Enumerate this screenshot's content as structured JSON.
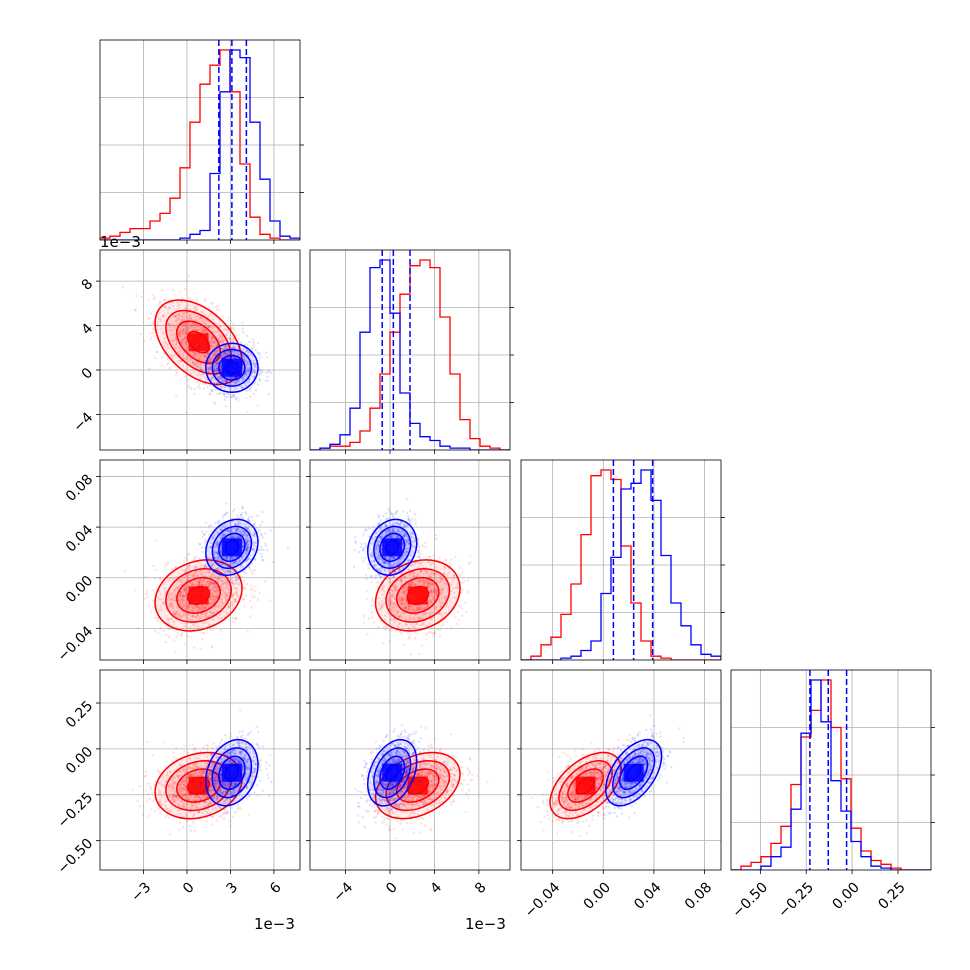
{
  "colors": {
    "series_a": "#ff0000",
    "series_b": "#0000ff",
    "grid": "#b0b0b0"
  },
  "offset_labels": {
    "col0": "1e−3",
    "col1": "1e−3",
    "row1": "1e−3"
  },
  "chart_data": {
    "type": "corner",
    "title": "",
    "grid": true,
    "parameters": [
      {
        "label": "",
        "range": [
          -0.006,
          0.0078
        ],
        "ticks": [
          -0.003,
          0,
          0.003,
          0.006
        ],
        "tick_labels": [
          "−3",
          "0",
          "3",
          "6"
        ],
        "offset": "1e−3"
      },
      {
        "label": "",
        "range": [
          -0.0072,
          0.0108
        ],
        "ticks": [
          -0.004,
          0,
          0.004,
          0.008
        ],
        "tick_labels": [
          "−4",
          "0",
          "4",
          "8"
        ],
        "offset": "1e−3"
      },
      {
        "label": "",
        "range": [
          -0.065,
          0.093
        ],
        "ticks": [
          -0.04,
          0,
          0.04,
          0.08
        ],
        "tick_labels": [
          "−0.04",
          "0.00",
          "0.04",
          "0.08"
        ],
        "offset": ""
      },
      {
        "label": "",
        "range": [
          -0.66,
          0.43
        ],
        "ticks": [
          -0.5,
          -0.25,
          0,
          0.25
        ],
        "tick_labels": [
          "−0.50",
          "−0.25",
          "0.00",
          "0.25"
        ],
        "offset": ""
      }
    ],
    "series": [
      {
        "name": "",
        "color": "#ff0000",
        "mean": [
          0.0008,
          0.0025,
          -0.014,
          -0.2
        ],
        "std": [
          0.0015,
          0.0019,
          0.014,
          0.09
        ],
        "histograms": [
          [
            0.01,
            0.02,
            0.04,
            0.06,
            0.06,
            0.1,
            0.14,
            0.22,
            0.38,
            0.62,
            0.82,
            0.92,
            1.0,
            0.78,
            0.4,
            0.12,
            0.03,
            0.01,
            0.0,
            0.0
          ],
          [
            0.0,
            0.01,
            0.02,
            0.02,
            0.04,
            0.1,
            0.22,
            0.4,
            0.62,
            0.82,
            0.97,
            1.0,
            0.96,
            0.7,
            0.4,
            0.16,
            0.06,
            0.02,
            0.01,
            0.0
          ],
          [
            0.0,
            0.02,
            0.08,
            0.12,
            0.24,
            0.4,
            0.66,
            0.97,
            1.0,
            0.95,
            0.6,
            0.3,
            0.1,
            0.02,
            0.01,
            0.0,
            0.0,
            0.0,
            0.0,
            0.0
          ],
          [
            0.0,
            0.02,
            0.04,
            0.07,
            0.14,
            0.23,
            0.45,
            0.7,
            0.84,
            1.0,
            0.75,
            0.48,
            0.22,
            0.1,
            0.05,
            0.03,
            0.01,
            0.0,
            0.0,
            0.0
          ]
        ]
      },
      {
        "name": "",
        "color": "#0000ff",
        "mean": [
          0.0031,
          0.0002,
          0.024,
          -0.13
        ],
        "std": [
          0.0009,
          0.0011,
          0.011,
          0.09
        ],
        "quantiles": [
          [
            0.0022,
            0.0031,
            0.0041
          ],
          [
            -0.0007,
            0.0003,
            0.0018
          ],
          [
            0.008,
            0.024,
            0.039
          ],
          [
            -0.23,
            -0.13,
            -0.03
          ]
        ],
        "histograms": [
          [
            0.0,
            0.0,
            0.0,
            0.0,
            0.0,
            0.0,
            0.0,
            0.0,
            0.01,
            0.03,
            0.05,
            0.35,
            0.78,
            1.0,
            0.96,
            0.62,
            0.32,
            0.1,
            0.02,
            0.01
          ],
          [
            0.0,
            0.01,
            0.03,
            0.08,
            0.22,
            0.62,
            0.96,
            1.0,
            0.72,
            0.3,
            0.14,
            0.07,
            0.05,
            0.02,
            0.01,
            0.01,
            0.0,
            0.0,
            0.0,
            0.0
          ],
          [
            0.0,
            0.0,
            0.0,
            0.0,
            0.01,
            0.02,
            0.05,
            0.1,
            0.35,
            0.54,
            0.9,
            0.93,
            1.0,
            0.84,
            0.55,
            0.3,
            0.18,
            0.08,
            0.03,
            0.02
          ],
          [
            0.0,
            0.0,
            0.0,
            0.02,
            0.07,
            0.12,
            0.32,
            0.72,
            1.0,
            0.78,
            0.47,
            0.31,
            0.15,
            0.07,
            0.02,
            0.01,
            0.0,
            0.0,
            0.0,
            0.0
          ]
        ]
      }
    ]
  }
}
